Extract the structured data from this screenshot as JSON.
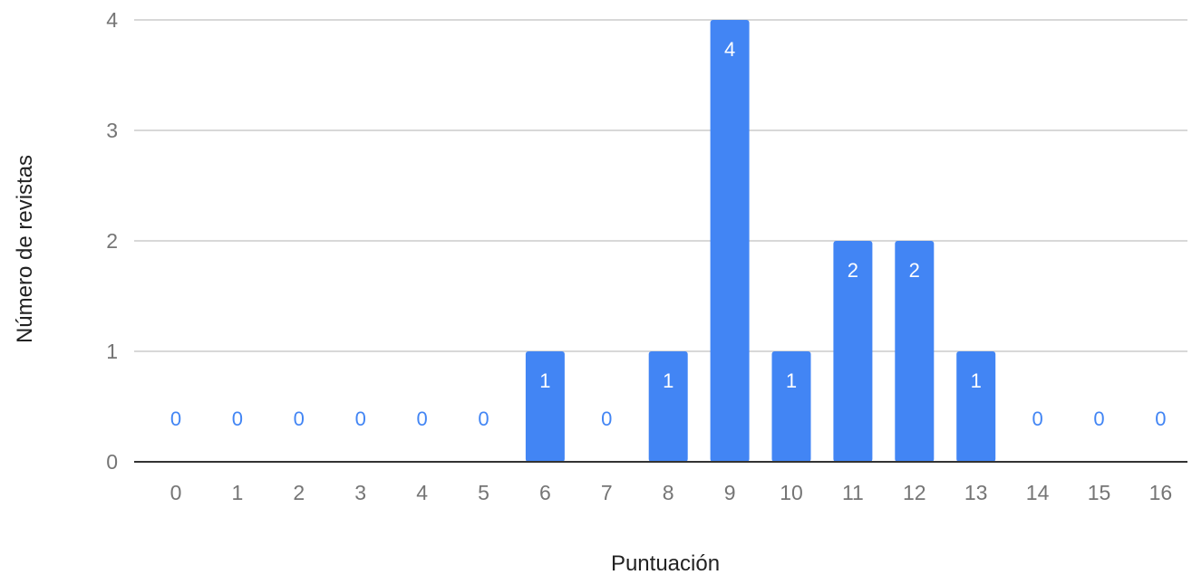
{
  "chart_data": {
    "type": "bar",
    "title": "",
    "xlabel": "Puntuación",
    "ylabel": "Número de revistas",
    "categories": [
      "0",
      "1",
      "2",
      "3",
      "4",
      "5",
      "6",
      "7",
      "8",
      "9",
      "10",
      "11",
      "12",
      "13",
      "14",
      "15",
      "16"
    ],
    "values": [
      0,
      0,
      0,
      0,
      0,
      0,
      1,
      0,
      1,
      4,
      1,
      2,
      2,
      1,
      0,
      0,
      0
    ],
    "y_ticks": [
      "0",
      "1",
      "2",
      "3",
      "4"
    ],
    "ylim": [
      0,
      4
    ],
    "grid": true,
    "legend": "none",
    "bar_color": "#4285f4",
    "gridline_color": "#cccccc",
    "baseline_color": "#333333",
    "outside_label_color": "#4285f4",
    "inside_label_color": "#ffffff",
    "tick_color": "#757575"
  }
}
